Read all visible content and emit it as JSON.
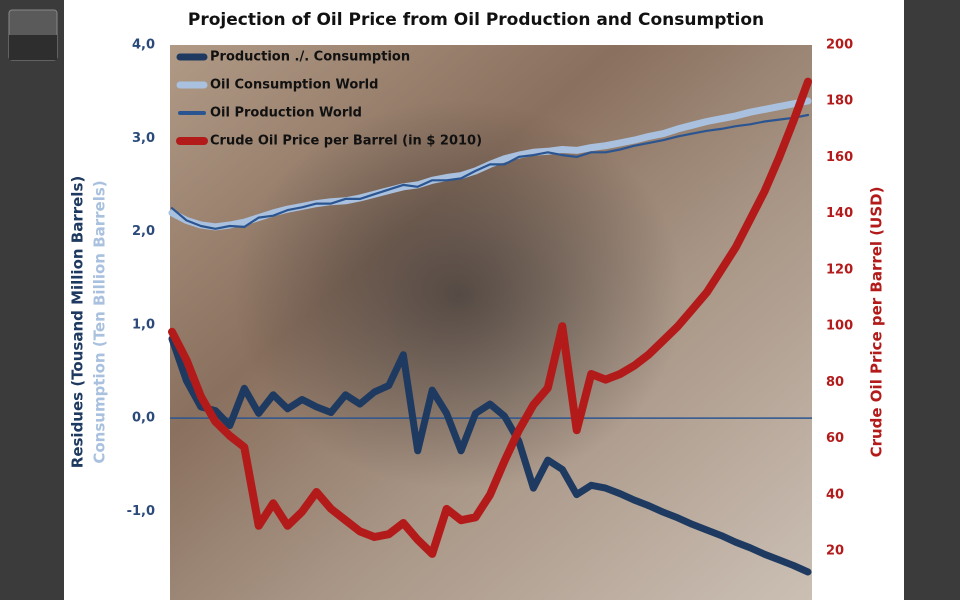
{
  "chart_data": {
    "type": "line",
    "title": "Projection of Oil Price from Oil Production and Consumption",
    "y_label": "Residues (Tousand Million Barrels)",
    "y_label_2": "Consumption (Ten Billion Barrels)",
    "y2_label": "Crude Oil Price per Barrel (USD)",
    "categories": [
      null,
      null,
      null,
      null,
      null,
      null,
      null,
      null,
      null,
      null,
      null,
      null,
      null,
      null,
      null,
      null,
      null,
      null,
      null,
      null,
      null,
      null,
      null,
      null,
      null,
      null,
      null,
      null,
      null,
      null,
      null,
      null,
      null,
      null,
      null,
      null,
      null,
      null,
      null,
      null,
      null,
      null,
      null,
      null,
      null
    ],
    "ylim": [
      -1.95,
      4.0
    ],
    "yticks": [
      {
        "value": -1,
        "label": "-1,0"
      },
      {
        "value": 0,
        "label": "0,0"
      },
      {
        "value": 1,
        "label": "1,0"
      },
      {
        "value": 2,
        "label": "2,0"
      },
      {
        "value": 3,
        "label": "3,0"
      },
      {
        "value": 4,
        "label": "4,0"
      }
    ],
    "y2lim": [
      2.6,
      200
    ],
    "y2ticks": [
      20,
      40,
      60,
      80,
      100,
      120,
      140,
      160,
      180,
      200
    ],
    "grid": false,
    "legend": "upper left",
    "series": [
      {
        "name": "Production ./. Consumption",
        "color": "#1f3a60",
        "values": [
          0.85,
          0.4,
          0.12,
          0.08,
          -0.08,
          0.32,
          0.05,
          0.25,
          0.1,
          0.2,
          0.12,
          0.06,
          0.25,
          0.15,
          0.28,
          0.35,
          0.68,
          -0.35,
          0.3,
          0.05,
          -0.35,
          0.05,
          0.15,
          0.02,
          -0.25,
          -0.75,
          -0.45,
          -0.55,
          -0.82,
          -0.72,
          -0.75,
          -0.81,
          -0.88,
          -0.94,
          -1.01,
          -1.07,
          -1.14,
          -1.2,
          -1.26,
          -1.33,
          -1.39,
          -1.46,
          -1.52,
          -1.58,
          -1.65
        ]
      },
      {
        "name": "Oil Consumption World",
        "color": "#a9c1de",
        "values": [
          2.2,
          2.12,
          2.07,
          2.05,
          2.07,
          2.1,
          2.15,
          2.2,
          2.24,
          2.27,
          2.3,
          2.32,
          2.33,
          2.36,
          2.4,
          2.44,
          2.48,
          2.5,
          2.55,
          2.58,
          2.6,
          2.65,
          2.72,
          2.78,
          2.82,
          2.85,
          2.86,
          2.88,
          2.87,
          2.9,
          2.92,
          2.95,
          2.98,
          3.02,
          3.05,
          3.1,
          3.14,
          3.18,
          3.21,
          3.24,
          3.28,
          3.31,
          3.34,
          3.37,
          3.4
        ]
      },
      {
        "name": "Oil Production World",
        "color": "#2b5591",
        "values": [
          2.25,
          2.12,
          2.06,
          2.03,
          2.06,
          2.05,
          2.15,
          2.17,
          2.23,
          2.26,
          2.3,
          2.3,
          2.35,
          2.35,
          2.4,
          2.45,
          2.5,
          2.48,
          2.55,
          2.55,
          2.57,
          2.65,
          2.72,
          2.72,
          2.8,
          2.82,
          2.85,
          2.82,
          2.8,
          2.85,
          2.85,
          2.88,
          2.92,
          2.95,
          2.98,
          3.02,
          3.05,
          3.08,
          3.1,
          3.13,
          3.15,
          3.18,
          3.2,
          3.22,
          3.25
        ]
      },
      {
        "name": "Crude Oil Price per Barrel (in $ 2010)",
        "color": "#b31b1b",
        "axis": "y2",
        "values": [
          98,
          88,
          75,
          66,
          61,
          57,
          29,
          37,
          29,
          34,
          41,
          35,
          31,
          27,
          25,
          26,
          30,
          24,
          19,
          35,
          31,
          32,
          40,
          52,
          63,
          72,
          78,
          100,
          63,
          83,
          81,
          83,
          86,
          90,
          95,
          100,
          106,
          112,
          120,
          128,
          138,
          148,
          160,
          173,
          187
        ]
      }
    ]
  }
}
